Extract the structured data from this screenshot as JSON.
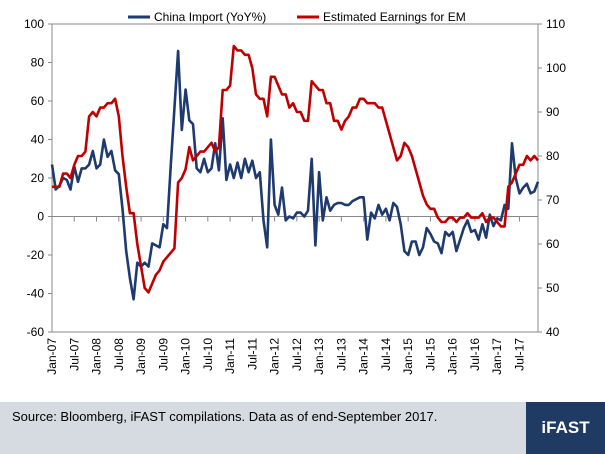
{
  "chart_data": {
    "type": "line",
    "title": "",
    "xlabel": "",
    "ylabel": "",
    "y_left_lim": [
      -60,
      100
    ],
    "y_left_ticks": [
      -60,
      -40,
      -20,
      0,
      20,
      40,
      60,
      80,
      100
    ],
    "y_right_lim": [
      40,
      110
    ],
    "y_right_ticks": [
      40,
      50,
      60,
      70,
      80,
      90,
      100,
      110
    ],
    "x_tick_labels": [
      "Jan-07",
      "Jul-07",
      "Jan-08",
      "Jul-08",
      "Jan-09",
      "Jul-09",
      "Jan-10",
      "Jul-10",
      "Jan-11",
      "Jul-11",
      "Jan-12",
      "Jul-12",
      "Jan-13",
      "Jul-13",
      "Jan-14",
      "Jul-14",
      "Jan-15",
      "Jul-15",
      "Jan-16",
      "Jul-16",
      "Jan-17",
      "Jul-17"
    ],
    "x_range_months": [
      0,
      129
    ],
    "legend_placement": "top",
    "grid": false,
    "series": [
      {
        "name": "China Import (YoY%)",
        "axis": "left",
        "color": "#1f3a6e",
        "points": [
          [
            0,
            27
          ],
          [
            1,
            14
          ],
          [
            2,
            16
          ],
          [
            3,
            20
          ],
          [
            4,
            19
          ],
          [
            5,
            14
          ],
          [
            6,
            26
          ],
          [
            7,
            18
          ],
          [
            8,
            25
          ],
          [
            9,
            25
          ],
          [
            10,
            27
          ],
          [
            11,
            34
          ],
          [
            12,
            25
          ],
          [
            13,
            27
          ],
          [
            14,
            40
          ],
          [
            15,
            31
          ],
          [
            16,
            34
          ],
          [
            17,
            24
          ],
          [
            18,
            22
          ],
          [
            19,
            4
          ],
          [
            20,
            -18
          ],
          [
            21,
            -32
          ],
          [
            22,
            -43
          ],
          [
            23,
            -24
          ],
          [
            24,
            -26
          ],
          [
            25,
            -24
          ],
          [
            26,
            -26
          ],
          [
            27,
            -14
          ],
          [
            28,
            -15
          ],
          [
            29,
            -16
          ],
          [
            30,
            -4
          ],
          [
            31,
            -6
          ],
          [
            32,
            26
          ],
          [
            33,
            56
          ],
          [
            34,
            86
          ],
          [
            35,
            45
          ],
          [
            36,
            66
          ],
          [
            37,
            50
          ],
          [
            38,
            48
          ],
          [
            39,
            25
          ],
          [
            40,
            23
          ],
          [
            41,
            30
          ],
          [
            42,
            23
          ],
          [
            43,
            25
          ],
          [
            44,
            38
          ],
          [
            45,
            24
          ],
          [
            46,
            51
          ],
          [
            47,
            19
          ],
          [
            48,
            27
          ],
          [
            49,
            20
          ],
          [
            50,
            28
          ],
          [
            51,
            20
          ],
          [
            52,
            30
          ],
          [
            53,
            23
          ],
          [
            54,
            29
          ],
          [
            55,
            20
          ],
          [
            56,
            23
          ],
          [
            57,
            -2
          ],
          [
            58,
            -16
          ],
          [
            59,
            40
          ],
          [
            60,
            6
          ],
          [
            61,
            1
          ],
          [
            62,
            15
          ],
          [
            63,
            -2
          ],
          [
            64,
            0
          ],
          [
            65,
            -1
          ],
          [
            66,
            2
          ],
          [
            67,
            2
          ],
          [
            68,
            0
          ],
          [
            69,
            3
          ],
          [
            70,
            30
          ],
          [
            71,
            -15
          ],
          [
            72,
            23
          ],
          [
            73,
            -2
          ],
          [
            74,
            10
          ],
          [
            75,
            3
          ],
          [
            76,
            6
          ],
          [
            77,
            7
          ],
          [
            78,
            7
          ],
          [
            79,
            6
          ],
          [
            80,
            6
          ],
          [
            81,
            8
          ],
          [
            82,
            9
          ],
          [
            83,
            10
          ],
          [
            84,
            10
          ],
          [
            85,
            -12
          ],
          [
            86,
            2
          ],
          [
            87,
            -1
          ],
          [
            88,
            6
          ],
          [
            89,
            1
          ],
          [
            90,
            4
          ],
          [
            91,
            -2
          ],
          [
            92,
            7
          ],
          [
            93,
            5
          ],
          [
            94,
            -4
          ],
          [
            95,
            -18
          ],
          [
            96,
            -20
          ],
          [
            97,
            -13
          ],
          [
            98,
            -13
          ],
          [
            99,
            -20
          ],
          [
            100,
            -16
          ],
          [
            101,
            -6
          ],
          [
            102,
            -9
          ],
          [
            103,
            -13
          ],
          [
            104,
            -14
          ],
          [
            105,
            -19
          ],
          [
            106,
            -8
          ],
          [
            107,
            -10
          ],
          [
            108,
            -8
          ],
          [
            109,
            -18
          ],
          [
            110,
            -12
          ],
          [
            111,
            -6
          ],
          [
            112,
            -2
          ],
          [
            113,
            -8
          ],
          [
            114,
            -7
          ],
          [
            115,
            -12
          ],
          [
            116,
            -4
          ],
          [
            117,
            -11
          ],
          [
            118,
            1
          ],
          [
            119,
            -5
          ],
          [
            120,
            -1
          ],
          [
            121,
            -2
          ],
          [
            122,
            6
          ],
          [
            123,
            4
          ],
          [
            124,
            38
          ],
          [
            125,
            20
          ],
          [
            126,
            12
          ],
          [
            127,
            15
          ],
          [
            128,
            17
          ],
          [
            129,
            12
          ],
          [
            130,
            13
          ],
          [
            131,
            18
          ]
        ]
      },
      {
        "name": "Estimated Earnings for EM",
        "axis": "right",
        "color": "#c00000",
        "points": [
          [
            0,
            73
          ],
          [
            1,
            73
          ],
          [
            2,
            73
          ],
          [
            3,
            76
          ],
          [
            4,
            76
          ],
          [
            5,
            75
          ],
          [
            6,
            78
          ],
          [
            7,
            80
          ],
          [
            8,
            80
          ],
          [
            9,
            81
          ],
          [
            10,
            89
          ],
          [
            11,
            90
          ],
          [
            12,
            89
          ],
          [
            13,
            91
          ],
          [
            14,
            91
          ],
          [
            15,
            92
          ],
          [
            16,
            92
          ],
          [
            17,
            93
          ],
          [
            18,
            89
          ],
          [
            19,
            80
          ],
          [
            20,
            73
          ],
          [
            21,
            67
          ],
          [
            22,
            67
          ],
          [
            23,
            60
          ],
          [
            24,
            55
          ],
          [
            25,
            50
          ],
          [
            26,
            49
          ],
          [
            27,
            51
          ],
          [
            28,
            53
          ],
          [
            29,
            54
          ],
          [
            30,
            56
          ],
          [
            31,
            57
          ],
          [
            32,
            58
          ],
          [
            33,
            59
          ],
          [
            34,
            74
          ],
          [
            35,
            75
          ],
          [
            36,
            77
          ],
          [
            37,
            82
          ],
          [
            38,
            79
          ],
          [
            39,
            80
          ],
          [
            40,
            81
          ],
          [
            41,
            81
          ],
          [
            42,
            82
          ],
          [
            43,
            83
          ],
          [
            44,
            81
          ],
          [
            45,
            82
          ],
          [
            46,
            95
          ],
          [
            47,
            95
          ],
          [
            48,
            96
          ],
          [
            49,
            105
          ],
          [
            50,
            104
          ],
          [
            51,
            104
          ],
          [
            52,
            103
          ],
          [
            53,
            103
          ],
          [
            54,
            100
          ],
          [
            55,
            94
          ],
          [
            56,
            93
          ],
          [
            57,
            93
          ],
          [
            58,
            89
          ],
          [
            59,
            98
          ],
          [
            60,
            98
          ],
          [
            61,
            96
          ],
          [
            62,
            94
          ],
          [
            63,
            94
          ],
          [
            64,
            91
          ],
          [
            65,
            92
          ],
          [
            66,
            90
          ],
          [
            67,
            90
          ],
          [
            68,
            88
          ],
          [
            69,
            88
          ],
          [
            70,
            97
          ],
          [
            71,
            96
          ],
          [
            72,
            95
          ],
          [
            73,
            95
          ],
          [
            74,
            92
          ],
          [
            75,
            92
          ],
          [
            76,
            88
          ],
          [
            77,
            88
          ],
          [
            78,
            86
          ],
          [
            79,
            88
          ],
          [
            80,
            89
          ],
          [
            81,
            91
          ],
          [
            82,
            91
          ],
          [
            83,
            93
          ],
          [
            84,
            93
          ],
          [
            85,
            92
          ],
          [
            86,
            92
          ],
          [
            87,
            92
          ],
          [
            88,
            91
          ],
          [
            89,
            91
          ],
          [
            90,
            88
          ],
          [
            91,
            85
          ],
          [
            92,
            82
          ],
          [
            93,
            79
          ],
          [
            94,
            80
          ],
          [
            95,
            83
          ],
          [
            96,
            82
          ],
          [
            97,
            80
          ],
          [
            98,
            77
          ],
          [
            99,
            74
          ],
          [
            100,
            71
          ],
          [
            101,
            69
          ],
          [
            102,
            68
          ],
          [
            103,
            68
          ],
          [
            104,
            66
          ],
          [
            105,
            65
          ],
          [
            106,
            65
          ],
          [
            107,
            66
          ],
          [
            108,
            66
          ],
          [
            109,
            65
          ],
          [
            110,
            66
          ],
          [
            111,
            66
          ],
          [
            112,
            67
          ],
          [
            113,
            66
          ],
          [
            114,
            66
          ],
          [
            115,
            66
          ],
          [
            116,
            67
          ],
          [
            117,
            65
          ],
          [
            118,
            66
          ],
          [
            119,
            66
          ],
          [
            120,
            65
          ],
          [
            121,
            64
          ],
          [
            122,
            64
          ],
          [
            123,
            73
          ],
          [
            124,
            74
          ],
          [
            125,
            76
          ],
          [
            126,
            78
          ],
          [
            127,
            78
          ],
          [
            128,
            80
          ],
          [
            129,
            79
          ],
          [
            130,
            80
          ],
          [
            131,
            79
          ]
        ]
      }
    ]
  },
  "footer": {
    "source_text": "Source: Bloomberg, iFAST compilations. Data as of end-September 2017.",
    "logo_text": "iFAST"
  }
}
